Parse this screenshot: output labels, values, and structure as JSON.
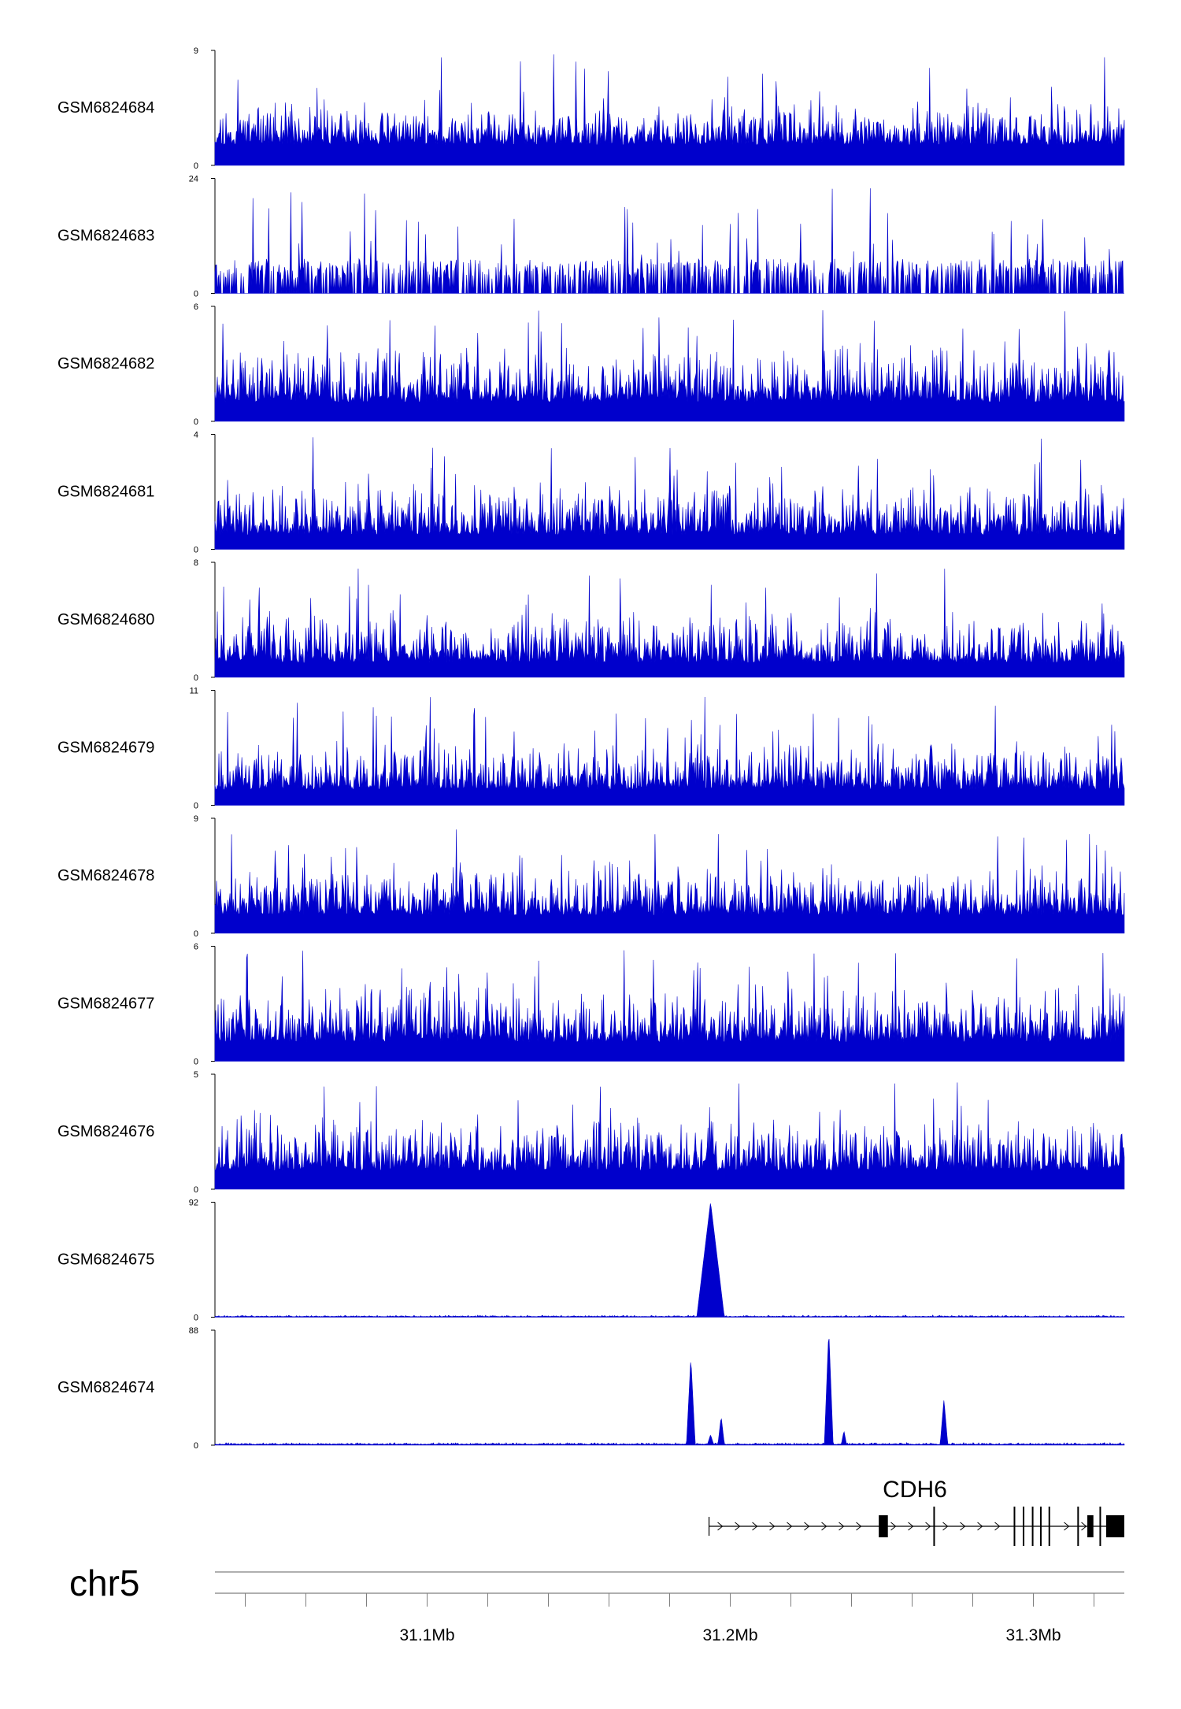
{
  "chart_data": {
    "type": "area",
    "title": "",
    "xlabel": "",
    "ylabel": "",
    "chromosome": "chr5",
    "x_range_mb": [
      31.03,
      31.33
    ],
    "x_ticks": [
      {
        "value": 31.1,
        "label": "31.1Mb"
      },
      {
        "value": 31.2,
        "label": "31.2Mb"
      },
      {
        "value": 31.3,
        "label": "31.3Mb"
      }
    ],
    "colors": {
      "signal": "#0000cc",
      "axis": "#000000",
      "gene": "#000000"
    },
    "tracks": [
      {
        "name": "GSM6824684",
        "ymax_label": "9",
        "ymin_label": "0",
        "ylim": [
          0,
          9
        ],
        "base": 1.6,
        "noise": 2.2,
        "spike_height": 8.7,
        "spikes": [],
        "seed": 11
      },
      {
        "name": "GSM6824683",
        "ymax_label": "24",
        "ymin_label": "0",
        "ylim": [
          0,
          24
        ],
        "base": 0.0,
        "noise": 7.2,
        "spike_height": 22.0,
        "spikes": [],
        "seed": 23,
        "sparse": true
      },
      {
        "name": "GSM6824682",
        "ymax_label": "6",
        "ymin_label": "0",
        "ylim": [
          0,
          6
        ],
        "base": 1.0,
        "noise": 2.0,
        "spike_height": 5.8,
        "spikes": [],
        "seed": 37
      },
      {
        "name": "GSM6824681",
        "ymax_label": "4",
        "ymin_label": "0",
        "ylim": [
          0,
          4
        ],
        "base": 0.5,
        "noise": 1.2,
        "spike_height": 3.9,
        "spikes": [],
        "seed": 41
      },
      {
        "name": "GSM6824680",
        "ymax_label": "8",
        "ymin_label": "0",
        "ylim": [
          0,
          8
        ],
        "base": 1.0,
        "noise": 2.4,
        "spike_height": 7.6,
        "spikes": [],
        "seed": 53
      },
      {
        "name": "GSM6824679",
        "ymax_label": "11",
        "ymin_label": "0",
        "ylim": [
          0,
          11
        ],
        "base": 1.5,
        "noise": 3.0,
        "spike_height": 10.5,
        "spikes": [],
        "seed": 67
      },
      {
        "name": "GSM6824678",
        "ymax_label": "9",
        "ymin_label": "0",
        "ylim": [
          0,
          9
        ],
        "base": 1.4,
        "noise": 2.6,
        "spike_height": 8.4,
        "spikes": [],
        "seed": 71
      },
      {
        "name": "GSM6824677",
        "ymax_label": "6",
        "ymin_label": "0",
        "ylim": [
          0,
          6
        ],
        "base": 1.0,
        "noise": 2.0,
        "spike_height": 5.8,
        "spikes": [],
        "seed": 83
      },
      {
        "name": "GSM6824676",
        "ymax_label": "5",
        "ymin_label": "0",
        "ylim": [
          0,
          5
        ],
        "base": 0.8,
        "noise": 1.6,
        "spike_height": 4.8,
        "spikes": [],
        "seed": 97
      },
      {
        "name": "GSM6824675",
        "ymax_label": "92",
        "ymin_label": "0",
        "ylim": [
          0,
          92
        ],
        "base": 0.4,
        "noise": 0.8,
        "spike_height": 0,
        "seed": 101,
        "spikes": [
          {
            "pos_mb": 31.1935,
            "value": 92,
            "width_mb": 0.0025
          }
        ]
      },
      {
        "name": "GSM6824674",
        "ymax_label": "88",
        "ymin_label": "0",
        "ylim": [
          0,
          88
        ],
        "base": 0.5,
        "noise": 1.0,
        "spike_height": 0,
        "seed": 113,
        "spikes": [
          {
            "pos_mb": 31.187,
            "value": 67,
            "width_mb": 0.0008
          },
          {
            "pos_mb": 31.1935,
            "value": 8,
            "width_mb": 0.0006
          },
          {
            "pos_mb": 31.197,
            "value": 22,
            "width_mb": 0.0006
          },
          {
            "pos_mb": 31.2325,
            "value": 88,
            "width_mb": 0.0008
          },
          {
            "pos_mb": 31.2375,
            "value": 11,
            "width_mb": 0.0005
          },
          {
            "pos_mb": 31.2705,
            "value": 35,
            "width_mb": 0.0007
          }
        ]
      }
    ],
    "gene": {
      "name": "CDH6",
      "strand": "+",
      "start_mb": 31.193,
      "end_mb": 31.33,
      "exons": [
        {
          "start_mb": 31.249,
          "end_mb": 31.252,
          "thick": true
        },
        {
          "start_mb": 31.267,
          "end_mb": 31.2673,
          "thick": false
        },
        {
          "start_mb": 31.2935,
          "end_mb": 31.2938,
          "thick": false
        },
        {
          "start_mb": 31.2965,
          "end_mb": 31.2968,
          "thick": false
        },
        {
          "start_mb": 31.2995,
          "end_mb": 31.2998,
          "thick": false
        },
        {
          "start_mb": 31.3022,
          "end_mb": 31.3025,
          "thick": false
        },
        {
          "start_mb": 31.305,
          "end_mb": 31.3053,
          "thick": false
        },
        {
          "start_mb": 31.3145,
          "end_mb": 31.3148,
          "thick": false
        },
        {
          "start_mb": 31.3178,
          "end_mb": 31.3198,
          "thick": true
        },
        {
          "start_mb": 31.3218,
          "end_mb": 31.3221,
          "thick": false
        },
        {
          "start_mb": 31.324,
          "end_mb": 31.33,
          "thick": true
        }
      ]
    }
  }
}
